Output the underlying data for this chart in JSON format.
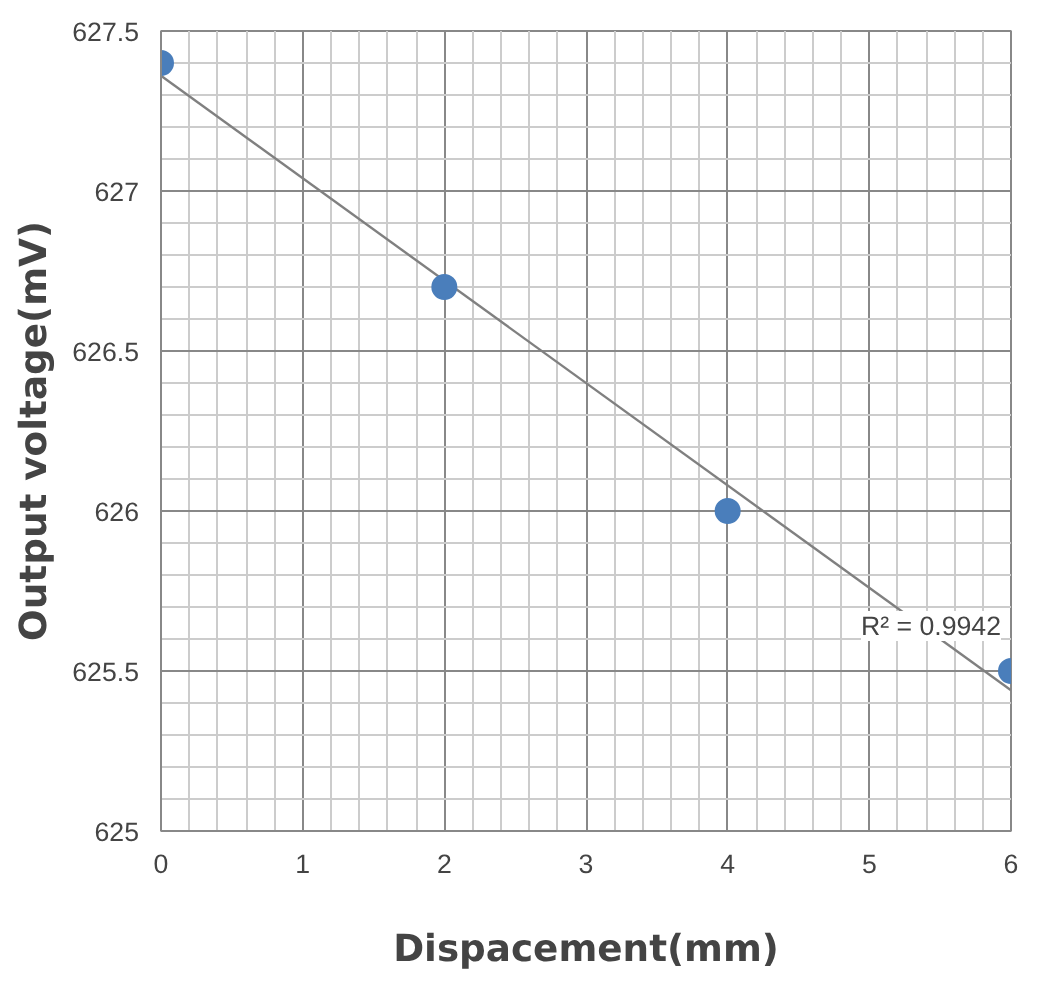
{
  "chart_data": {
    "type": "scatter",
    "xlabel": "Dispacement(mm)",
    "ylabel": "Output voltage(mV)",
    "series": [
      {
        "color": "#4a7ebb",
        "marker": "circle",
        "x": [
          0,
          2,
          4,
          6
        ],
        "values": [
          627.4,
          626.7,
          626.0,
          625.5
        ]
      },
      {
        "type": "line",
        "color": "#808080",
        "x": [
          0,
          6
        ],
        "values": [
          627.36,
          625.44
        ]
      }
    ],
    "xlim": [
      0,
      6
    ],
    "xticks": [
      0,
      1,
      2,
      3,
      4,
      5,
      6
    ],
    "ylim": [
      625,
      627.5
    ],
    "yticks": [
      625,
      625.5,
      626,
      626.5,
      627,
      627.5
    ],
    "grid": true,
    "annotations": [
      "R² = 0.9942"
    ]
  }
}
